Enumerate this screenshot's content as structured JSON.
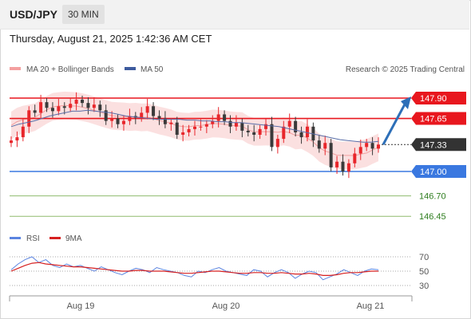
{
  "header": {
    "symbol": "USD/JPY",
    "timeframe": "30 MIN",
    "timestamp": "Thursday, August 21, 2025 1:42:36 AM CET"
  },
  "legend": {
    "bollinger_label": "MA 20 + Bollinger Bands",
    "ma50_label": "MA 50",
    "copyright": "Research © 2025 Trading Central",
    "rsi_label": "RSI",
    "rsi_ma_label": "9MA"
  },
  "colors": {
    "up": "#e8262b",
    "down": "#3a3a3a",
    "resistance": "#e8171e",
    "support": "#3a78e0",
    "support2": "#8fbc6e",
    "ma50": "#5a6ea8",
    "band": "#f9d6d6",
    "rsi": "#5b84e0",
    "rsi_ma": "#d62020",
    "arrow": "#2d6fb8",
    "price_tag": "#333333"
  },
  "chart_data": [
    {
      "type": "candlestick",
      "title": "",
      "x_ticks": [
        "Aug 19",
        "Aug 20",
        "Aug 21"
      ],
      "ylim": [
        146.3,
        148.15
      ],
      "current_price": 147.33,
      "levels": [
        {
          "label": "147.90",
          "value": 147.9,
          "kind": "resistance"
        },
        {
          "label": "147.65",
          "value": 147.65,
          "kind": "resistance"
        },
        {
          "label": "147.00",
          "value": 147.0,
          "kind": "support"
        },
        {
          "label": "146.70",
          "value": 146.7,
          "kind": "support2"
        },
        {
          "label": "146.45",
          "value": 146.45,
          "kind": "support2"
        }
      ],
      "current_label": "147.33",
      "target_value": 147.9,
      "close_path": [
        147.38,
        147.42,
        147.55,
        147.75,
        147.72,
        147.85,
        147.78,
        147.74,
        147.8,
        147.78,
        147.83,
        147.88,
        147.84,
        147.78,
        147.82,
        147.75,
        147.62,
        147.65,
        147.58,
        147.62,
        147.68,
        147.66,
        147.72,
        147.8,
        147.68,
        147.65,
        147.58,
        147.6,
        147.45,
        147.48,
        147.52,
        147.55,
        147.55,
        147.58,
        147.62,
        147.7,
        147.62,
        147.55,
        147.6,
        147.5,
        147.48,
        147.45,
        147.52,
        147.58,
        147.3,
        147.4,
        147.55,
        147.62,
        147.48,
        147.42,
        147.55,
        147.38,
        147.28,
        147.35,
        147.05,
        147.12,
        147.0,
        147.1,
        147.22,
        147.3,
        147.35,
        147.28,
        147.33
      ],
      "ma50_path": [
        147.55,
        147.58,
        147.6,
        147.62,
        147.65,
        147.68,
        147.7,
        147.72,
        147.74,
        147.74,
        147.75,
        147.74,
        147.73,
        147.72,
        147.7,
        147.68,
        147.67,
        147.66,
        147.65,
        147.64,
        147.64,
        147.64,
        147.64,
        147.63,
        147.63,
        147.62,
        147.62,
        147.61,
        147.61,
        147.6,
        147.6,
        147.59,
        147.58,
        147.57,
        147.56,
        147.55,
        147.53,
        147.51,
        147.49,
        147.47,
        147.45,
        147.43,
        147.41,
        147.39,
        147.38,
        147.37,
        147.36,
        147.36,
        147.37
      ],
      "rsi": {
        "yticks": [
          "70",
          "50",
          "30"
        ],
        "ylim": [
          20,
          80
        ],
        "rsi_path": [
          52,
          60,
          66,
          70,
          62,
          66,
          58,
          55,
          60,
          56,
          58,
          54,
          50,
          56,
          52,
          48,
          45,
          50,
          54,
          52,
          48,
          55,
          52,
          50,
          48,
          44,
          42,
          50,
          48,
          52,
          55,
          50,
          48,
          46,
          44,
          52,
          50,
          42,
          48,
          52,
          48,
          40,
          46,
          50,
          48,
          38,
          42,
          46,
          52,
          48,
          44,
          50,
          53,
          52
        ],
        "ma_path": [
          50,
          54,
          58,
          61,
          62,
          60,
          59,
          58,
          57,
          56,
          56,
          55,
          54,
          53,
          52,
          51,
          50,
          50,
          51,
          51,
          50,
          50,
          50,
          49,
          48,
          47,
          47,
          48,
          49,
          50,
          50,
          49,
          48,
          47,
          47,
          48,
          48,
          47,
          47,
          48,
          47,
          46,
          46,
          47,
          46,
          44,
          44,
          45,
          47,
          48,
          48,
          49,
          50,
          50
        ]
      }
    }
  ]
}
